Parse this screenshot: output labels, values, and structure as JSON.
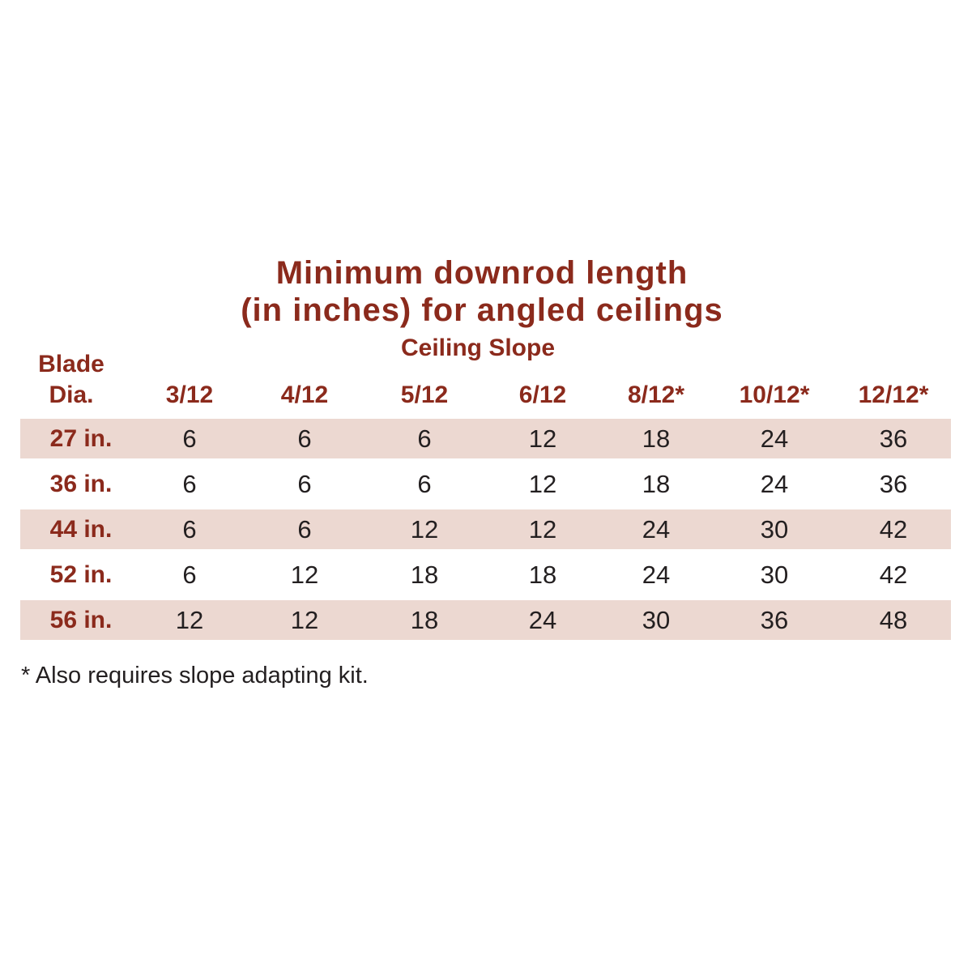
{
  "title_line1": "Minimum downrod length",
  "title_line2": "(in inches) for angled ceilings",
  "subtitle": "Ceiling Slope",
  "blade_header": [
    "Blade",
    "Dia."
  ],
  "columns": [
    "3/12",
    "4/12",
    "5/12",
    "6/12",
    "8/12*",
    "10/12*",
    "12/12*"
  ],
  "rows": [
    {
      "label": "27 in.",
      "values": [
        "6",
        "6",
        "6",
        "12",
        "18",
        "24",
        "36"
      ]
    },
    {
      "label": "36 in.",
      "values": [
        "6",
        "6",
        "6",
        "12",
        "18",
        "24",
        "36"
      ]
    },
    {
      "label": "44 in.",
      "values": [
        "6",
        "6",
        "12",
        "12",
        "24",
        "30",
        "42"
      ]
    },
    {
      "label": "52 in.",
      "values": [
        "6",
        "12",
        "18",
        "18",
        "24",
        "30",
        "42"
      ]
    },
    {
      "label": "56 in.",
      "values": [
        "12",
        "12",
        "18",
        "24",
        "30",
        "36",
        "48"
      ]
    }
  ],
  "footnote": "* Also requires slope adapting kit.",
  "colors": {
    "accent": "#8b2a1c",
    "row_shade": "#ecd8d1",
    "text": "#231f20"
  }
}
